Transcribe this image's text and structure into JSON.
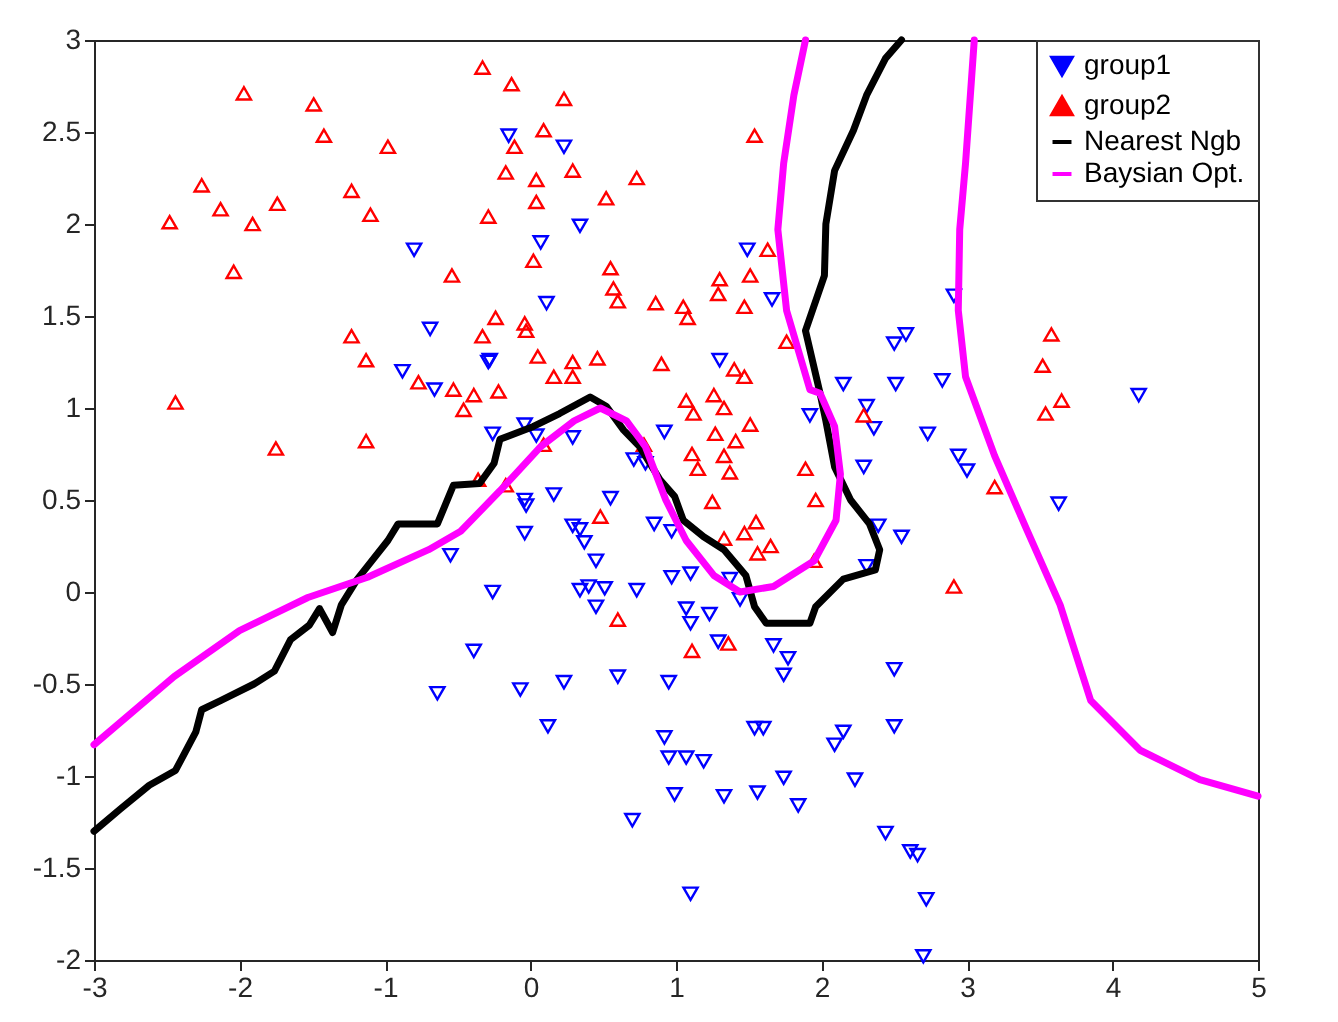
{
  "chart_data": {
    "type": "scatter",
    "xlim": [
      -3,
      5
    ],
    "ylim": [
      -2,
      3
    ],
    "xticks": [
      -3,
      -2,
      -1,
      0,
      1,
      2,
      3,
      4,
      5
    ],
    "yticks": [
      -2,
      -1.5,
      -1,
      -0.5,
      0,
      0.5,
      1,
      1.5,
      2,
      2.5,
      3
    ],
    "legend": "top right",
    "grid": false,
    "series": [
      {
        "name": "group1",
        "marker": "triangle-down",
        "color": "#0000ff",
        "x": [
          -0.8,
          -0.69,
          -0.88,
          -0.66,
          -0.29,
          -0.15,
          0.23,
          0.34,
          0.07,
          1.49,
          0.11,
          1.66,
          -0.28,
          1.3,
          2.15,
          2.31,
          2.5,
          2.91,
          2.58,
          2.51,
          2.83,
          2.36,
          2.73,
          2.94,
          3.0,
          2.29,
          4.18,
          3.63,
          2.39,
          2.55,
          2.31,
          -0.55,
          -0.26,
          -0.26,
          -0.39,
          -0.64,
          -0.04,
          0.04,
          0.29,
          0.71,
          0.79,
          0.92,
          1.92,
          -0.04,
          0.16,
          -0.03,
          0.55,
          -0.04,
          0.29,
          0.34,
          0.37,
          0.45,
          0.85,
          0.97,
          0.34,
          0.4,
          0.51,
          0.45,
          0.73,
          0.97,
          1.1,
          1.37,
          1.44,
          1.07,
          1.1,
          1.23,
          1.29,
          1.67,
          1.77,
          1.74,
          2.5,
          -0.07,
          0.23,
          0.6,
          0.95,
          0.12,
          0.92,
          0.95,
          1.07,
          1.19,
          1.54,
          1.6,
          2.15,
          2.09,
          2.5,
          0.99,
          1.33,
          1.56,
          1.74,
          1.84,
          2.23,
          2.44,
          0.7,
          1.1,
          2.61,
          2.66,
          2.72,
          2.7
        ],
        "values": [
          1.86,
          1.43,
          1.2,
          1.1,
          1.25,
          2.48,
          2.42,
          1.99,
          1.9,
          1.86,
          1.57,
          1.59,
          1.26,
          1.26,
          1.13,
          1.01,
          1.35,
          1.61,
          1.4,
          1.13,
          1.15,
          0.89,
          0.86,
          0.74,
          0.66,
          0.68,
          1.07,
          0.48,
          0.36,
          0.3,
          0.14,
          0.2,
          0.86,
          0.0,
          -0.32,
          -0.55,
          0.91,
          0.85,
          0.84,
          0.72,
          0.7,
          0.87,
          0.96,
          0.5,
          0.53,
          0.47,
          0.51,
          0.32,
          0.36,
          0.34,
          0.27,
          0.17,
          0.37,
          0.33,
          0.01,
          0.03,
          0.02,
          -0.08,
          0.01,
          0.08,
          0.1,
          0.07,
          -0.04,
          -0.09,
          -0.17,
          -0.12,
          -0.27,
          -0.29,
          -0.36,
          -0.45,
          -0.42,
          -0.53,
          -0.49,
          -0.46,
          -0.49,
          -0.73,
          -0.79,
          -0.9,
          -0.9,
          -0.92,
          -0.74,
          -0.74,
          -0.76,
          -0.83,
          -0.73,
          -1.1,
          -1.11,
          -1.09,
          -1.01,
          -1.16,
          -1.02,
          -1.31,
          -1.24,
          -1.64,
          -1.41,
          -1.43,
          -1.67,
          -1.98
        ]
      },
      {
        "name": "group2",
        "marker": "triangle",
        "color": "#ff0000",
        "x": [
          -1.97,
          -1.49,
          -1.42,
          -0.98,
          -2.26,
          -2.13,
          -1.74,
          -2.48,
          -1.91,
          -1.23,
          -1.1,
          -0.33,
          -0.29,
          -2.04,
          -0.54,
          -1.23,
          -1.13,
          -0.33,
          -0.24,
          -0.77,
          -0.53,
          -2.44,
          -0.39,
          -0.13,
          0.23,
          0.09,
          -0.11,
          -0.17,
          0.04,
          0.29,
          0.73,
          0.04,
          0.52,
          1.54,
          0.02,
          0.55,
          0.57,
          0.6,
          0.86,
          1.05,
          1.08,
          1.3,
          1.29,
          1.51,
          1.63,
          1.47,
          -0.04,
          -0.03,
          0.05,
          0.29,
          0.46,
          0.16,
          0.29,
          0.9,
          1.4,
          1.47,
          1.76,
          -0.22,
          1.07,
          1.26,
          3.58,
          3.52,
          3.65,
          3.54,
          3.19,
          2.91,
          2.29,
          -1.75,
          -1.13,
          -0.46,
          -0.36,
          1.12,
          1.33,
          1.27,
          1.51,
          1.41,
          1.11,
          1.15,
          1.33,
          1.37,
          1.89,
          1.96,
          1.25,
          0.09,
          -0.17,
          0.48,
          1.55,
          1.33,
          1.47,
          1.56,
          1.65,
          1.95,
          0.78,
          0.6,
          1.11,
          1.36
        ],
        "values": [
          2.71,
          2.65,
          2.48,
          2.42,
          2.21,
          2.08,
          2.11,
          2.01,
          2.0,
          2.18,
          2.05,
          2.85,
          2.04,
          1.74,
          1.72,
          1.39,
          1.26,
          1.39,
          1.49,
          1.14,
          1.1,
          1.03,
          1.07,
          2.76,
          2.68,
          2.51,
          2.42,
          2.28,
          2.24,
          2.29,
          2.25,
          2.12,
          2.14,
          2.48,
          1.8,
          1.76,
          1.65,
          1.58,
          1.57,
          1.55,
          1.49,
          1.7,
          1.62,
          1.72,
          1.86,
          1.55,
          1.46,
          1.42,
          1.28,
          1.25,
          1.27,
          1.17,
          1.17,
          1.24,
          1.21,
          1.17,
          1.36,
          1.09,
          1.04,
          1.07,
          1.4,
          1.23,
          1.04,
          0.97,
          0.57,
          0.03,
          0.96,
          0.78,
          0.82,
          0.99,
          0.61,
          0.97,
          1.0,
          0.86,
          0.91,
          0.82,
          0.75,
          0.67,
          0.74,
          0.65,
          0.67,
          0.5,
          0.49,
          0.8,
          0.58,
          0.41,
          0.38,
          0.29,
          0.32,
          0.21,
          0.25,
          0.17,
          0.8,
          -0.15,
          -0.32,
          -0.28
        ]
      },
      {
        "name": "Nearest Ngb",
        "type": "line",
        "color": "#000000",
        "x": [
          -3,
          -2.82,
          -2.62,
          -2.44,
          -2.3,
          -2.26,
          -2.13,
          -1.9,
          -1.76,
          -1.65,
          -1.52,
          -1.45,
          -1.36,
          -1.3,
          -1.19,
          -0.98,
          -0.91,
          -0.64,
          -0.53,
          -0.35,
          -0.25,
          -0.21,
          0.02,
          0.2,
          0.41,
          0.52,
          0.64,
          0.75,
          0.89,
          0.99,
          1.05,
          1.19,
          1.33,
          1.48,
          1.54,
          1.62,
          1.92,
          1.96,
          2.15,
          2.37,
          2.4,
          2.33,
          2.2,
          2.09,
          2.03,
          1.99,
          1.89,
          2.02,
          2.03,
          2.09,
          2.22,
          2.31,
          2.44,
          2.55
        ],
        "values": [
          -1.3,
          -1.18,
          -1.05,
          -0.97,
          -0.76,
          -0.64,
          -0.59,
          -0.5,
          -0.43,
          -0.26,
          -0.18,
          -0.09,
          -0.22,
          -0.07,
          0.07,
          0.28,
          0.37,
          0.37,
          0.58,
          0.59,
          0.7,
          0.83,
          0.9,
          0.97,
          1.06,
          1.01,
          0.88,
          0.79,
          0.61,
          0.52,
          0.39,
          0.3,
          0.23,
          0.09,
          -0.08,
          -0.17,
          -0.17,
          -0.08,
          0.07,
          0.12,
          0.23,
          0.37,
          0.5,
          0.68,
          0.93,
          1.08,
          1.42,
          1.72,
          2.0,
          2.29,
          2.51,
          2.7,
          2.9,
          3.0
        ]
      },
      {
        "name": "Baysian Opt.",
        "type": "line",
        "color": "#ff00ff",
        "x": [
          -3,
          -2.45,
          -2.0,
          -1.53,
          -1.12,
          -0.7,
          -0.48,
          -0.21,
          0.07,
          0.3,
          0.48,
          0.66,
          0.79,
          0.93,
          1.07,
          1.26,
          1.44,
          1.67,
          1.95,
          2.1,
          2.13,
          2.09,
          1.99,
          1.92,
          1.76,
          1.7,
          1.74,
          1.81,
          1.89,
          2.5,
          3.05,
          2.99,
          2.95,
          2.94,
          2.99,
          3.19,
          3.41,
          3.64,
          3.85,
          4.19,
          4.6,
          5.0
        ],
        "values": [
          -0.83,
          -0.46,
          -0.21,
          -0.03,
          0.08,
          0.23,
          0.33,
          0.55,
          0.79,
          0.93,
          1.0,
          0.93,
          0.79,
          0.5,
          0.28,
          0.09,
          0.0,
          0.03,
          0.17,
          0.39,
          0.64,
          0.9,
          1.08,
          1.1,
          1.53,
          1.97,
          2.33,
          2.7,
          3.0,
          null,
          3.0,
          2.33,
          1.97,
          1.53,
          1.17,
          0.74,
          0.34,
          -0.07,
          -0.59,
          -0.86,
          -1.02,
          -1.11
        ]
      }
    ]
  }
}
